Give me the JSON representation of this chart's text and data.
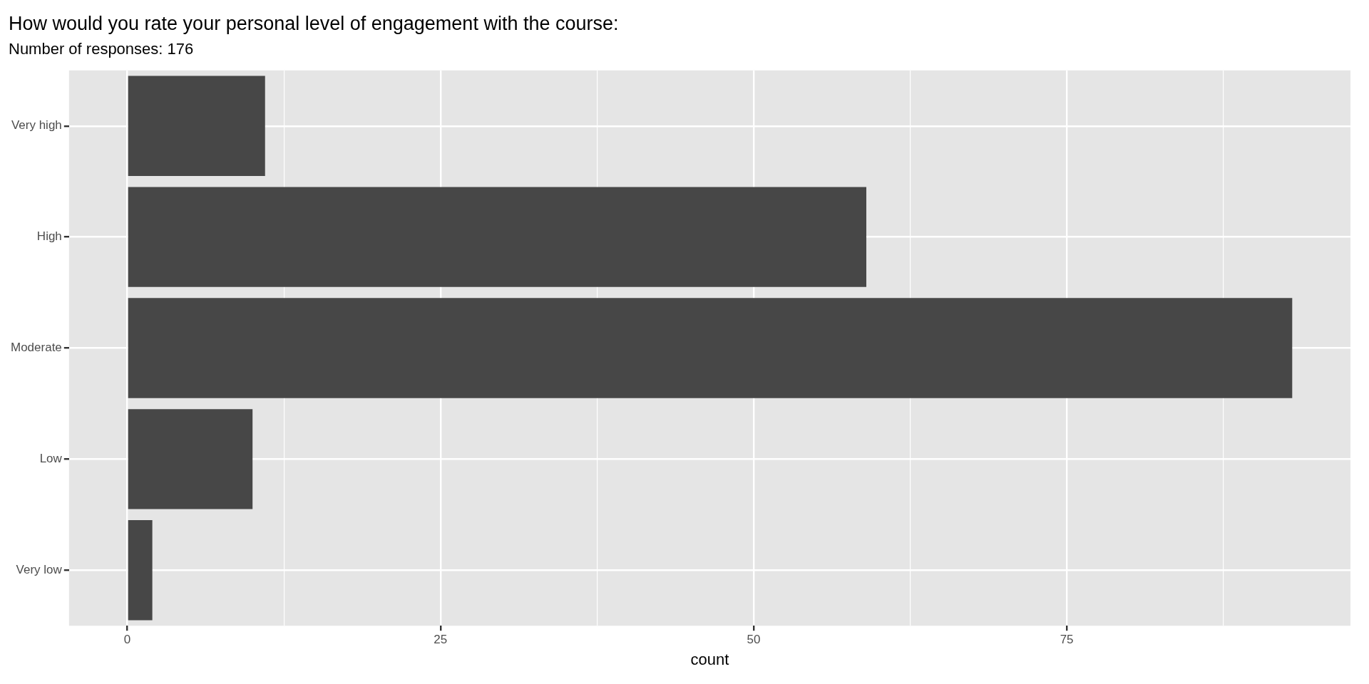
{
  "chart_data": {
    "type": "bar",
    "orientation": "horizontal",
    "title": "How would you rate your personal level of engagement with the course:",
    "subtitle": "Number of responses: 176",
    "xlabel": "count",
    "categories": [
      "Very high",
      "High",
      "Moderate",
      "Low",
      "Very low"
    ],
    "values": [
      11,
      59,
      93,
      10,
      2
    ],
    "color": "#474747",
    "xlim": [
      -4.65,
      97.65
    ],
    "xticks": [
      0,
      {
        "value": 12.5,
        "label": null
      },
      25,
      {
        "value": 37.5,
        "label": null
      },
      50,
      {
        "value": 62.5,
        "label": null
      },
      75,
      {
        "value": 87.5,
        "label": null
      }
    ],
    "grid": true
  }
}
